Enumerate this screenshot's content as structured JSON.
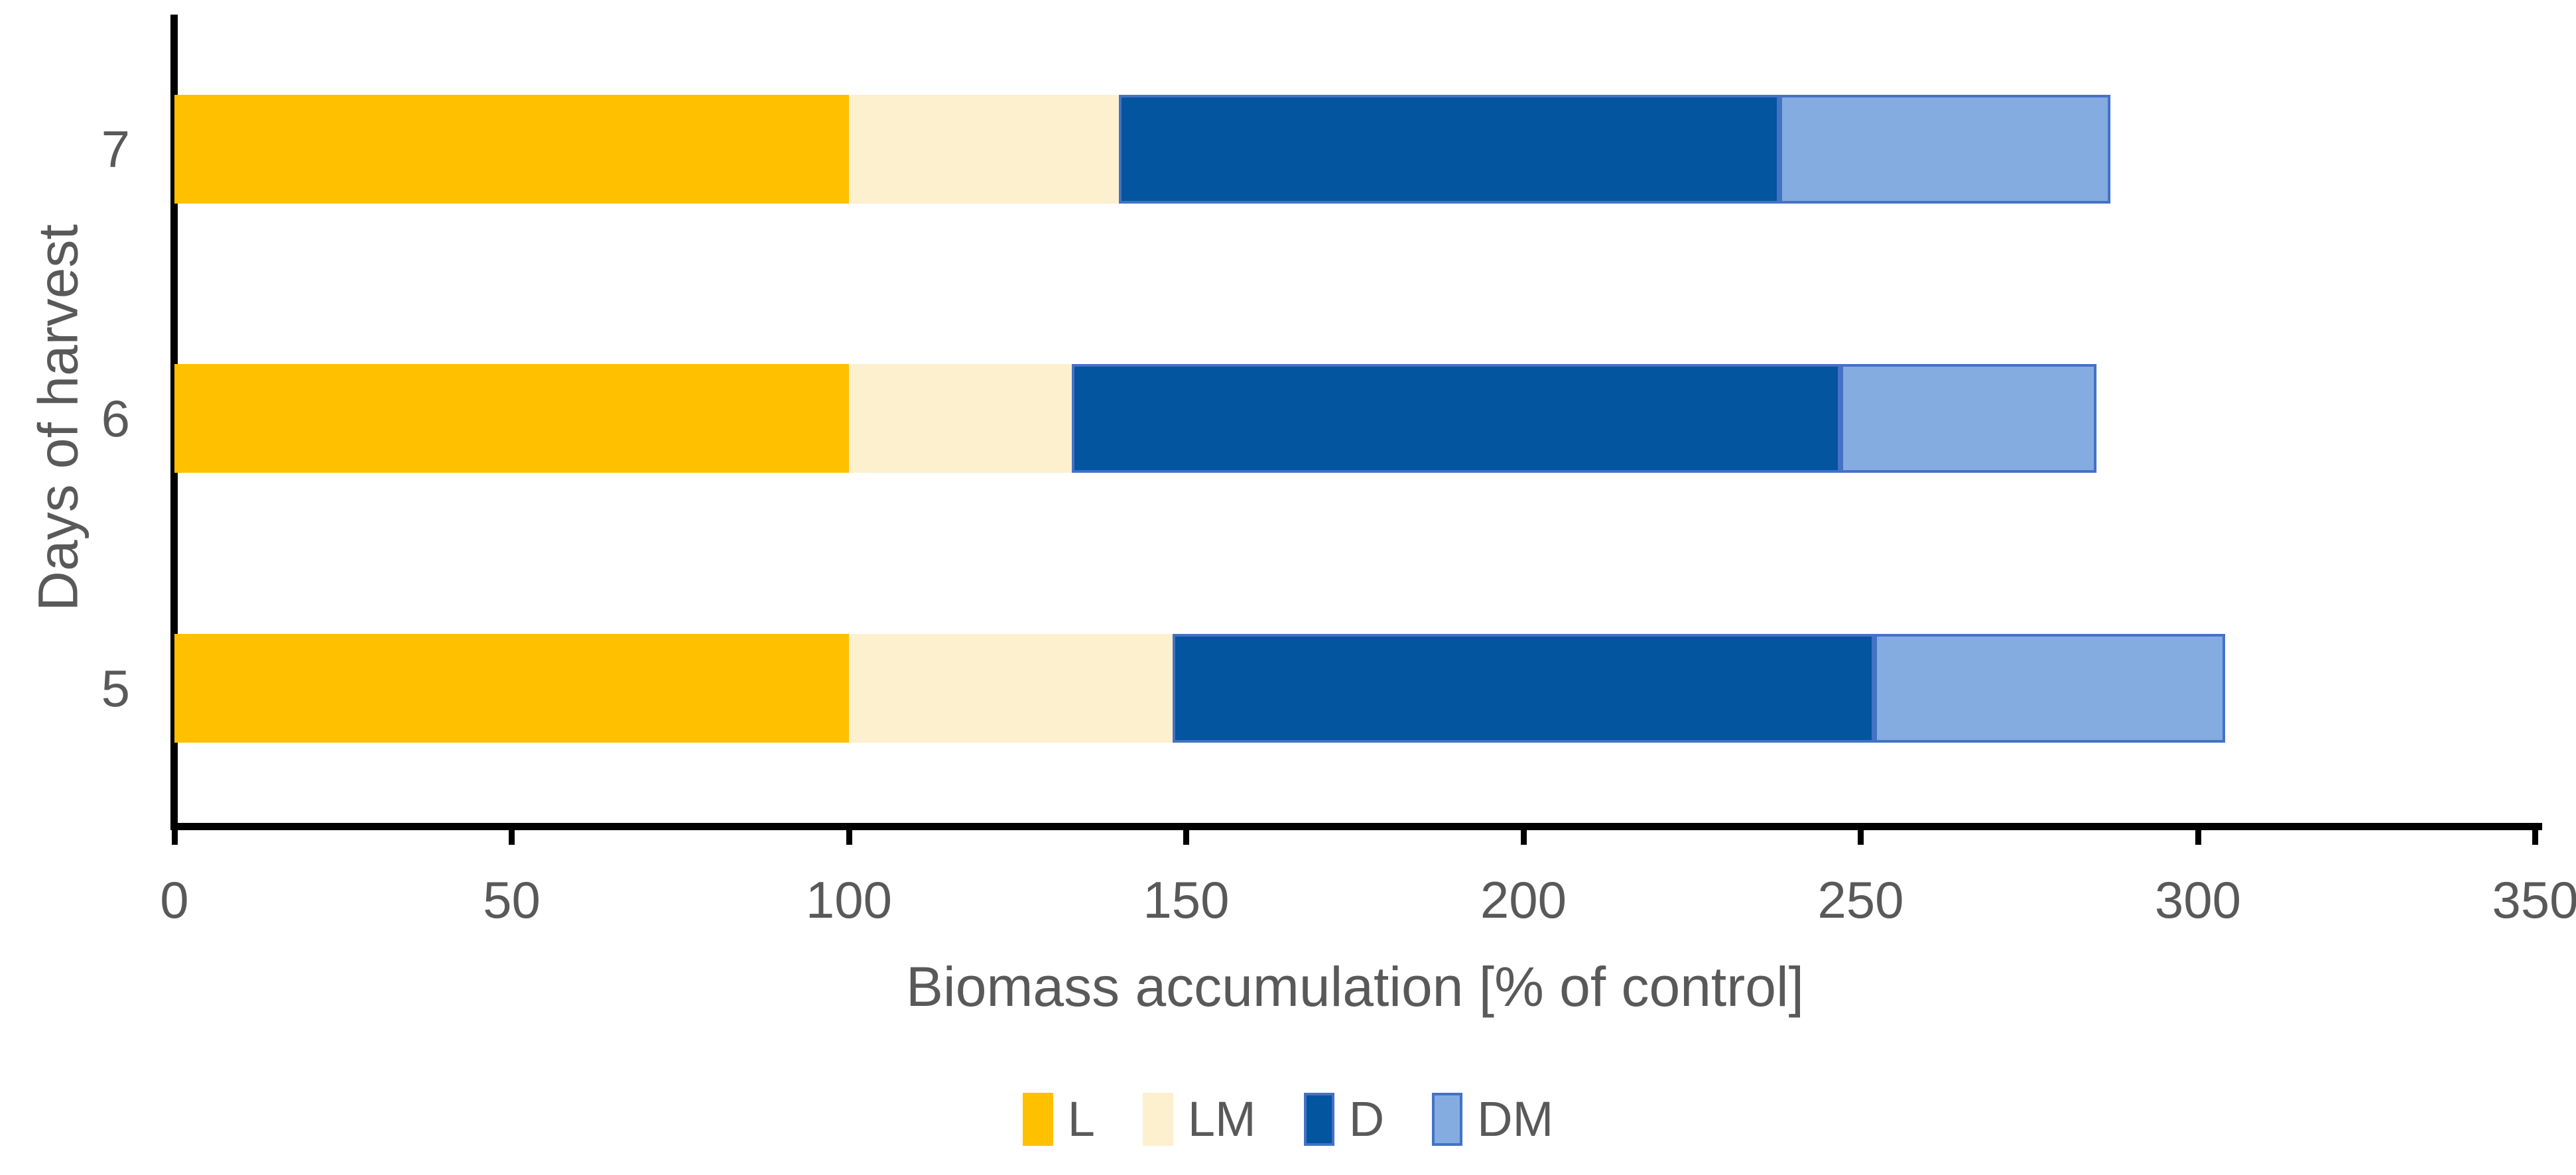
{
  "chart_data": {
    "type": "bar",
    "variant": "horizontal-stacked",
    "title": "",
    "xlabel": "Biomass accumulation [% of control]",
    "ylabel": "Days of harvest",
    "categories": [
      "7",
      "6",
      "5"
    ],
    "series": [
      {
        "name": "L",
        "color": "#FFC000",
        "border": "#FFC000",
        "values": [
          100,
          100,
          100
        ]
      },
      {
        "name": "LM",
        "color": "#FDF0CE",
        "border": "#FDF0CE",
        "values": [
          40,
          33,
          48
        ]
      },
      {
        "name": "D",
        "color": "#02559E",
        "border": "#4472C4",
        "values": [
          98,
          114,
          104
        ]
      },
      {
        "name": "DM",
        "color": "#84ACE0",
        "border": "#4472C4",
        "values": [
          49,
          38,
          52
        ]
      }
    ],
    "x_ticks": [
      "0",
      "50",
      "100",
      "150",
      "200",
      "250",
      "300",
      "350"
    ],
    "xlim": [
      0,
      350
    ],
    "grid": false,
    "legend_position": "bottom-center"
  },
  "colors": {
    "axis": "#000000",
    "text": "#595959",
    "background": "#FFFFFF"
  }
}
